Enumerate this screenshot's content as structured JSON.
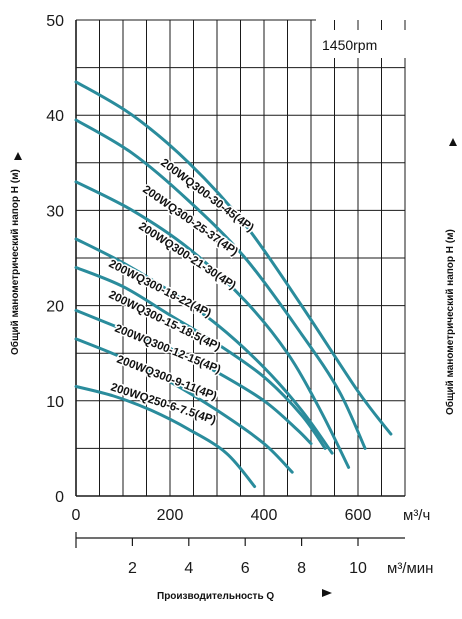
{
  "chart_data": {
    "type": "line",
    "speed_label": "1450rpm",
    "y_title": "Общий манометрический напор H (м)",
    "x_title": "Производительность Q",
    "x_unit_primary": "м³/ч",
    "x_unit_secondary": "м³/мин",
    "ylim": [
      0,
      50
    ],
    "xlim": [
      0,
      700
    ],
    "y_ticks": [
      "0",
      "10",
      "20",
      "30",
      "40",
      "50"
    ],
    "x_ticks": [
      "0",
      "200",
      "400",
      "600"
    ],
    "x2_ticks": [
      "2",
      "4",
      "6",
      "8",
      "10"
    ],
    "grid": true,
    "line_color": "#2a8c9c",
    "series": [
      {
        "name": "200WQ300-30-45(4P)",
        "points": [
          [
            0,
            43.5
          ],
          [
            120,
            40
          ],
          [
            240,
            35
          ],
          [
            360,
            28.5
          ],
          [
            480,
            20
          ],
          [
            600,
            11
          ],
          [
            670,
            6.5
          ]
        ]
      },
      {
        "name": "200WQ300-25-37(4P)",
        "points": [
          [
            0,
            39.5
          ],
          [
            120,
            36
          ],
          [
            240,
            31
          ],
          [
            360,
            25
          ],
          [
            480,
            17
          ],
          [
            560,
            11
          ],
          [
            615,
            5
          ]
        ]
      },
      {
        "name": "200WQ300-21-30(4P)",
        "points": [
          [
            0,
            33
          ],
          [
            120,
            30
          ],
          [
            240,
            26
          ],
          [
            360,
            20.5
          ],
          [
            450,
            15
          ],
          [
            520,
            9
          ],
          [
            580,
            3
          ]
        ]
      },
      {
        "name": "200WQ300-18-22(4P)",
        "points": [
          [
            0,
            27
          ],
          [
            100,
            24.5
          ],
          [
            200,
            21.5
          ],
          [
            300,
            18
          ],
          [
            400,
            13.5
          ],
          [
            480,
            9
          ],
          [
            545,
            4.5
          ]
        ]
      },
      {
        "name": "200WQ300-15-18.5(4P)",
        "points": [
          [
            0,
            24
          ],
          [
            100,
            22
          ],
          [
            200,
            19
          ],
          [
            300,
            16
          ],
          [
            400,
            12.5
          ],
          [
            480,
            8.5
          ],
          [
            530,
            5
          ]
        ]
      },
      {
        "name": "200WQ300-12-15(4P)",
        "points": [
          [
            0,
            19.5
          ],
          [
            100,
            17.5
          ],
          [
            200,
            15.5
          ],
          [
            300,
            13
          ],
          [
            400,
            10
          ],
          [
            470,
            7
          ],
          [
            500,
            5.5
          ]
        ]
      },
      {
        "name": "200WQ300-9-11(4P)",
        "points": [
          [
            0,
            16.5
          ],
          [
            100,
            14.5
          ],
          [
            200,
            12
          ],
          [
            300,
            9
          ],
          [
            400,
            5.5
          ],
          [
            460,
            2.5
          ]
        ]
      },
      {
        "name": "200WQ250-6-7.5(4P)",
        "points": [
          [
            0,
            11.5
          ],
          [
            80,
            10.5
          ],
          [
            160,
            9
          ],
          [
            240,
            7
          ],
          [
            320,
            4.5
          ],
          [
            380,
            1
          ]
        ]
      }
    ]
  }
}
